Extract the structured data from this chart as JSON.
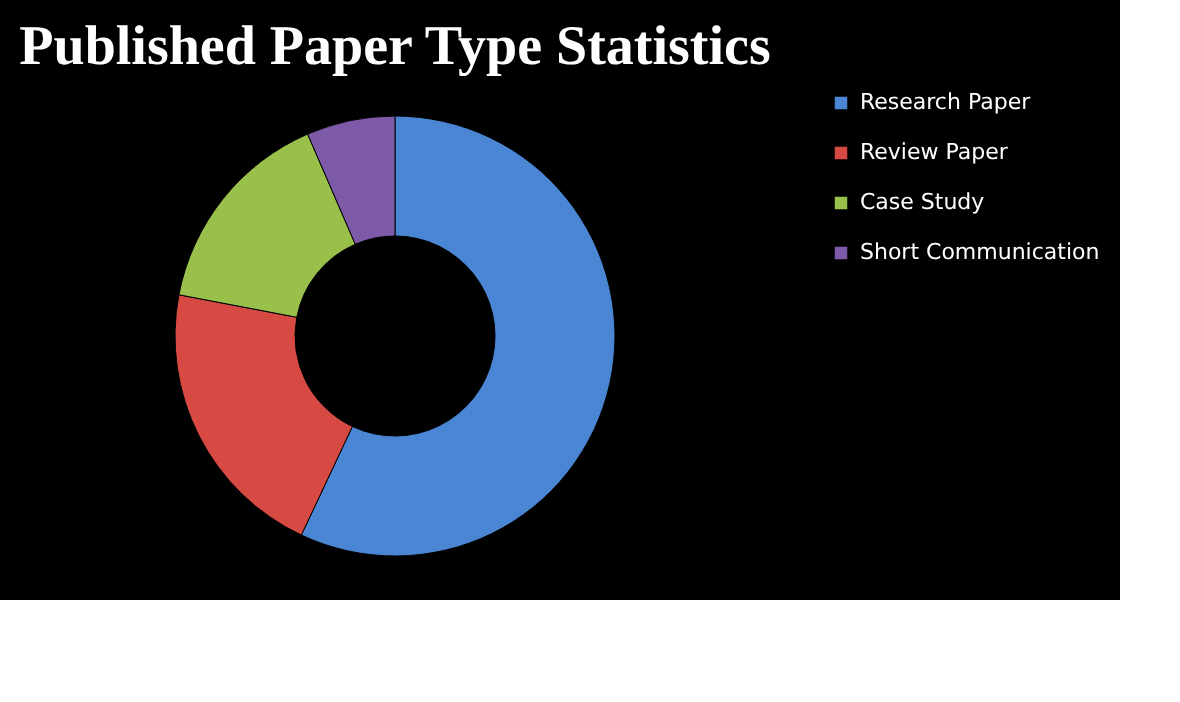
{
  "chart_data": {
    "type": "donut",
    "title": "Published Paper Type Statistics",
    "categories": [
      "Research Paper",
      "Review Paper",
      "Case Study",
      "Short Communication"
    ],
    "values": [
      57,
      21,
      15.5,
      6.5
    ],
    "colors": [
      "#4a86d4",
      "#d64a43",
      "#98c04a",
      "#7d5aa8"
    ],
    "legend": "right"
  }
}
